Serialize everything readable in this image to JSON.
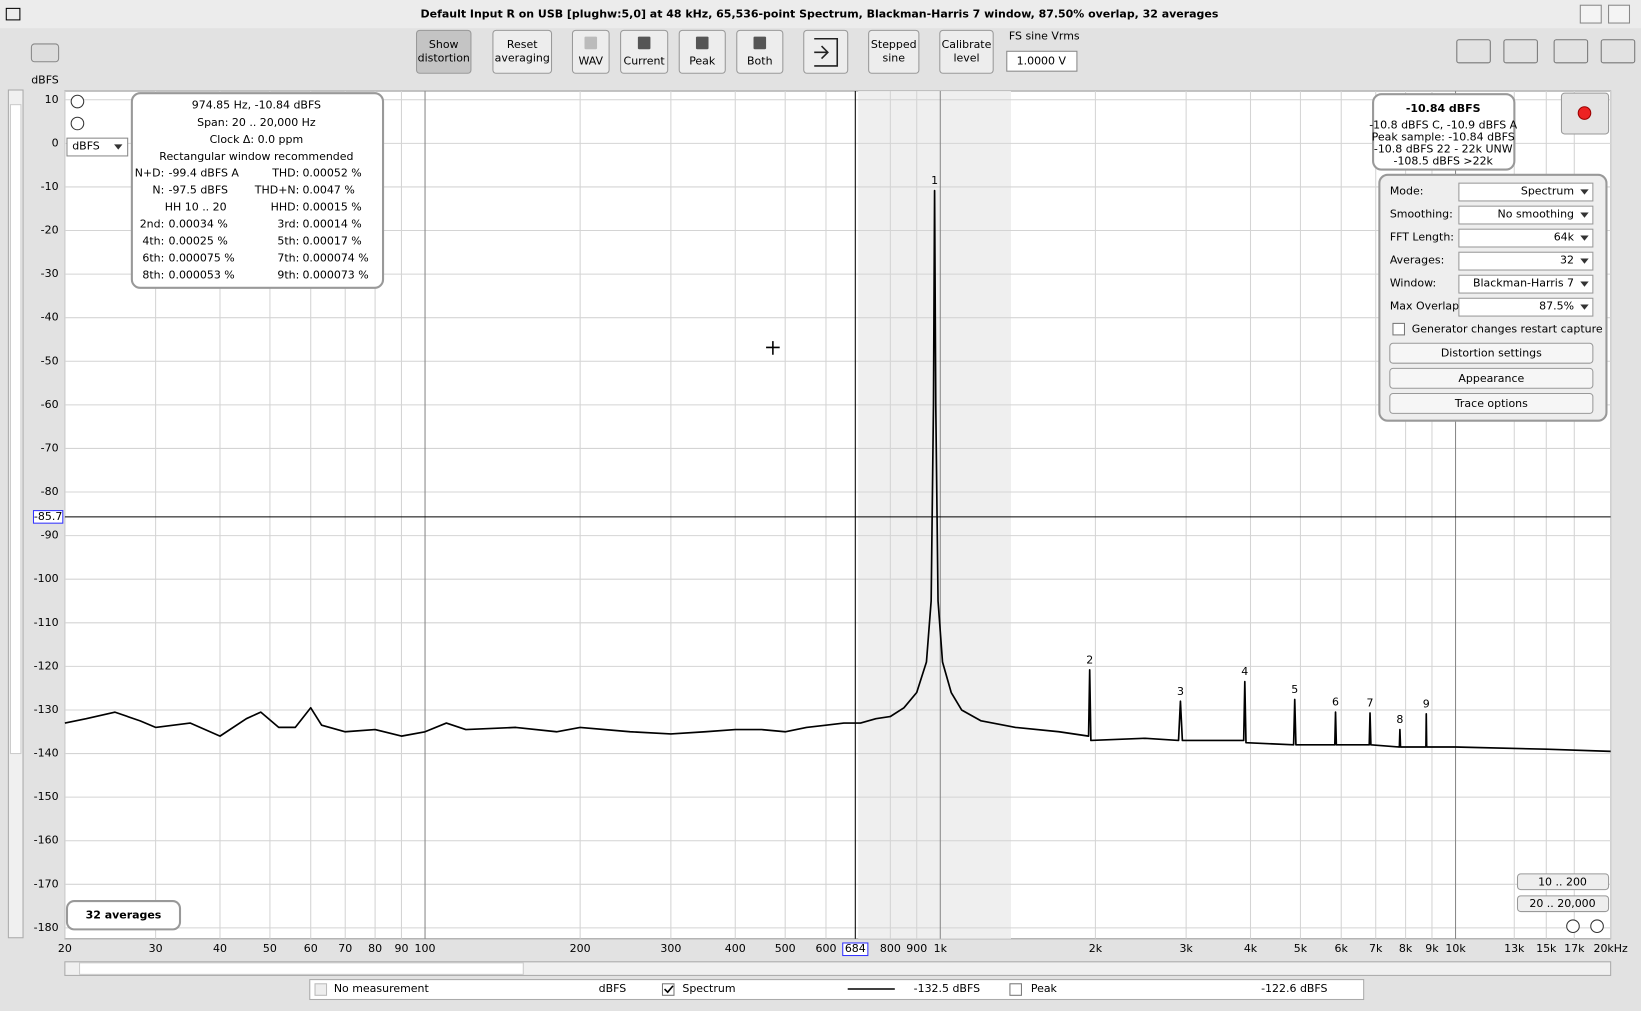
{
  "window": {
    "title": "Default Input R on USB [plughw:5,0] at 48 kHz, 65,536-point Spectrum, Blackman-Harris 7 window, 87.50% overlap, 32 averages"
  },
  "toolbar": {
    "buttons": [
      [
        "Show",
        "distortion"
      ],
      [
        "Reset",
        "averaging"
      ],
      [
        "WAV"
      ],
      [
        "Current"
      ],
      [
        "Peak"
      ],
      [
        "Both"
      ],
      [
        "Stepped",
        "sine"
      ],
      [
        "Calibrate",
        "level"
      ]
    ],
    "fs_label": "FS sine Vrms",
    "fs_value": "1.0000 V"
  },
  "plot": {
    "y_unit": "dBFS",
    "unit_select": "dBFS",
    "log_x": true,
    "xlim": [
      20,
      20000
    ],
    "ylim": [
      -182.5,
      12
    ],
    "yticks": [
      10,
      0,
      -10,
      -20,
      -30,
      -40,
      -50,
      -60,
      -70,
      -80,
      -90,
      -100,
      -110,
      -120,
      -130,
      -140,
      -150,
      -160,
      -170,
      -180
    ],
    "xticks": [
      20,
      30,
      40,
      50,
      60,
      70,
      80,
      90,
      100,
      200,
      300,
      400,
      500,
      600,
      800,
      900,
      {
        "value": 1000,
        "label": "1k"
      },
      {
        "value": 2000,
        "label": "2k"
      },
      {
        "value": 3000,
        "label": "3k"
      },
      {
        "value": 4000,
        "label": "4k"
      },
      {
        "value": 5000,
        "label": "5k"
      },
      {
        "value": 6000,
        "label": "6k"
      },
      {
        "value": 7000,
        "label": "7k"
      },
      {
        "value": 8000,
        "label": "8k"
      },
      {
        "value": 9000,
        "label": "9k"
      },
      {
        "value": 10000,
        "label": "10k"
      },
      {
        "value": 13000,
        "label": "13k"
      },
      {
        "value": 15000,
        "label": "15k"
      },
      {
        "value": 17000,
        "label": "17k"
      },
      {
        "value": 20000,
        "label": "20kHz"
      }
    ],
    "cursor": {
      "x": 684,
      "y": -85.7
    },
    "spectrum": {
      "color": "#000000",
      "x": [
        20,
        22,
        25,
        28,
        30,
        35,
        40,
        45,
        48,
        52,
        56,
        60,
        63,
        70,
        80,
        90,
        100,
        110,
        120,
        150,
        180,
        200,
        250,
        300,
        350,
        400,
        450,
        500,
        550,
        600,
        650,
        700,
        750,
        800,
        850,
        900,
        940,
        960,
        970,
        974.85,
        980,
        990,
        1010,
        1050,
        1100,
        1200,
        1400,
        1700,
        1940,
        1949.7,
        1960,
        2500,
        2900,
        2924.6,
        2950,
        3500,
        3880,
        3899.4,
        3920,
        4850,
        4874.3,
        4900,
        5830,
        5849.1,
        5870,
        6800,
        6824,
        6850,
        7780,
        7798.8,
        7820,
        8760,
        8773.7,
        8790,
        10000,
        15000,
        20000
      ],
      "values": [
        -133,
        -132,
        -130.5,
        -132.5,
        -134,
        -133,
        -136,
        -132,
        -130.5,
        -134,
        -134,
        -129.5,
        -133.5,
        -135,
        -134.5,
        -136,
        -135,
        -133,
        -134.5,
        -134,
        -135,
        -134,
        -135,
        -135.5,
        -135,
        -134.5,
        -134.5,
        -135,
        -134,
        -133.5,
        -133,
        -133,
        -132,
        -131.5,
        -129.5,
        -126,
        -119,
        -105,
        -60,
        -10.84,
        -60,
        -105,
        -119,
        -126,
        -130,
        -132.5,
        -134,
        -135,
        -136,
        -120.8,
        -137,
        -136.5,
        -137,
        -128,
        -137,
        -137,
        -137,
        -123.5,
        -137.5,
        -138,
        -127.6,
        -138,
        -138,
        -130.5,
        -138,
        -138,
        -130.7,
        -138,
        -138.5,
        -134.5,
        -138.5,
        -138.5,
        -130.9,
        -138.5,
        -138.5,
        -139,
        -139.5
      ]
    },
    "harmonics": [
      {
        "label": "1",
        "x": 974.85,
        "value": -10.84
      },
      {
        "label": "2",
        "x": 1949.7,
        "value": -120.8
      },
      {
        "label": "3",
        "x": 2924.6,
        "value": -128
      },
      {
        "label": "4",
        "x": 3899.4,
        "value": -123.5
      },
      {
        "label": "5",
        "x": 4874.3,
        "value": -127.6
      },
      {
        "label": "6",
        "x": 5849.1,
        "value": -130.5
      },
      {
        "label": "7",
        "x": 6824,
        "value": -130.7
      },
      {
        "label": "8",
        "x": 7798.8,
        "value": -134.5
      },
      {
        "label": "9",
        "x": 8773.7,
        "value": -130.9
      }
    ],
    "averages_badge": "32 averages",
    "range_buttons": [
      "10 .. 200",
      "20 .. 20,000"
    ]
  },
  "readout": {
    "lines": [
      "974.85 Hz, -10.84 dBFS",
      "Span: 20 .. 20,000 Hz",
      "Clock Δ: 0.0 ppm",
      "Rectangular window recommended"
    ],
    "rows": [
      {
        "l1": "N+D:",
        "v1": "-99.4 dBFS A",
        "l2": "THD:",
        "v2": "0.00052 %"
      },
      {
        "l1": "N:",
        "v1": "-97.5 dBFS",
        "l2": "THD+N:",
        "v2": "0.0047 %"
      },
      {
        "l1": "HH 10 .. 20",
        "l2": "HHD:",
        "v2": "0.00015 %"
      },
      {
        "l1": "2nd:",
        "v1": "0.00034 %",
        "l2": "3rd:",
        "v2": "0.00014 %"
      },
      {
        "l1": "4th:",
        "v1": "0.00025 %",
        "l2": "5th:",
        "v2": "0.00017 %"
      },
      {
        "l1": "6th:",
        "v1": "0.000075 %",
        "l2": "7th:",
        "v2": "0.000074 %"
      },
      {
        "l1": "8th:",
        "v1": "0.000053 %",
        "l2": "9th:",
        "v2": "0.000073 %"
      }
    ]
  },
  "level": {
    "main": "-10.84 dBFS",
    "lines": [
      "-10.8 dBFS C, -10.9 dBFS A",
      "Peak sample: -10.84 dBFS",
      "-10.8 dBFS 22 - 22k UNW",
      "-108.5 dBFS >22k"
    ]
  },
  "controls": {
    "rows": [
      [
        "Mode:",
        "Spectrum"
      ],
      [
        "Smoothing:",
        "No  smoothing"
      ],
      [
        "FFT Length:",
        "64k"
      ],
      [
        "Averages:",
        "32"
      ],
      [
        "Window:",
        "Blackman-Harris 7"
      ],
      [
        "Max Overlap:",
        "87.5%"
      ]
    ],
    "checkbox": "Generator changes restart capture",
    "buttons": [
      "Distortion settings",
      "Appearance",
      "Trace options"
    ]
  },
  "legend": {
    "items": [
      {
        "name": "No measurement",
        "unit": "dBFS"
      },
      {
        "name": "Spectrum",
        "value": "-132.5 dBFS",
        "color": "#000000"
      },
      {
        "name": "Peak",
        "value": "-122.6 dBFS",
        "color": "#aa0000"
      }
    ]
  }
}
